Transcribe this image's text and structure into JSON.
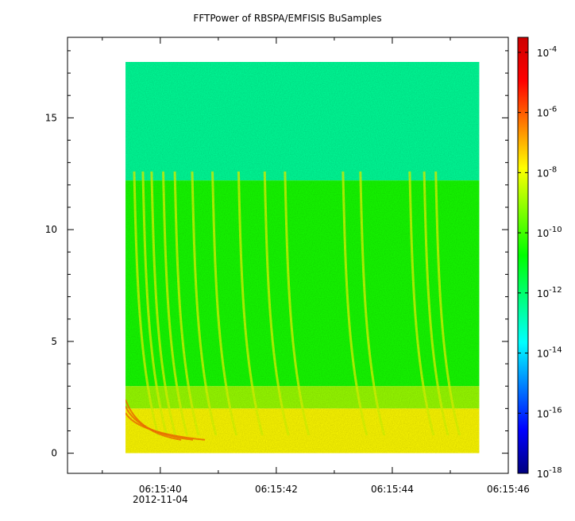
{
  "chart_data": {
    "type": "heatmap",
    "title": "FFTPower of RBSPA/EMFISIS  BuSamples",
    "xlabel": "",
    "ylabel": "",
    "x_tick_labels": [
      "06:15:40",
      "06:15:42",
      "06:15:44",
      "06:15:46"
    ],
    "x_date_label": "2012-11-04",
    "x_range_seconds": [
      38.4,
      46.0
    ],
    "x_data_range_seconds": [
      39.4,
      45.5
    ],
    "ylim": [
      -0.9,
      18.6
    ],
    "y_ticks": [
      0,
      5,
      10,
      15
    ],
    "y_data_range": [
      0,
      17.5
    ],
    "colorbar": {
      "scale": "log",
      "min_exponent": -18,
      "max_exponent": -3.5,
      "tick_base": "10",
      "tick_exponents": [
        "-4",
        "-6",
        "-8",
        "-10",
        "-12",
        "-14",
        "-16",
        "-18"
      ],
      "colormap_stops": [
        "#00007f",
        "#0000ff",
        "#007fff",
        "#00ffff",
        "#00ff7f",
        "#00ff00",
        "#7fff00",
        "#ffff00",
        "#ff7f00",
        "#ff0000",
        "#cc0000"
      ]
    },
    "spectrogram_regions": [
      {
        "freq_range": [
          12.2,
          17.5
        ],
        "log_power": -12.5
      },
      {
        "freq_range": [
          3.0,
          12.2
        ],
        "log_power": -10.5
      },
      {
        "freq_range": [
          2.0,
          3.0
        ],
        "log_power": -9.0
      },
      {
        "freq_range": [
          0,
          2.0
        ],
        "log_power": -7.8
      }
    ],
    "chorus_elements_seconds": [
      39.55,
      39.7,
      39.85,
      40.05,
      40.25,
      40.55,
      40.9,
      41.35,
      41.8,
      42.15,
      43.15,
      43.45,
      44.3,
      44.55,
      44.75
    ]
  }
}
